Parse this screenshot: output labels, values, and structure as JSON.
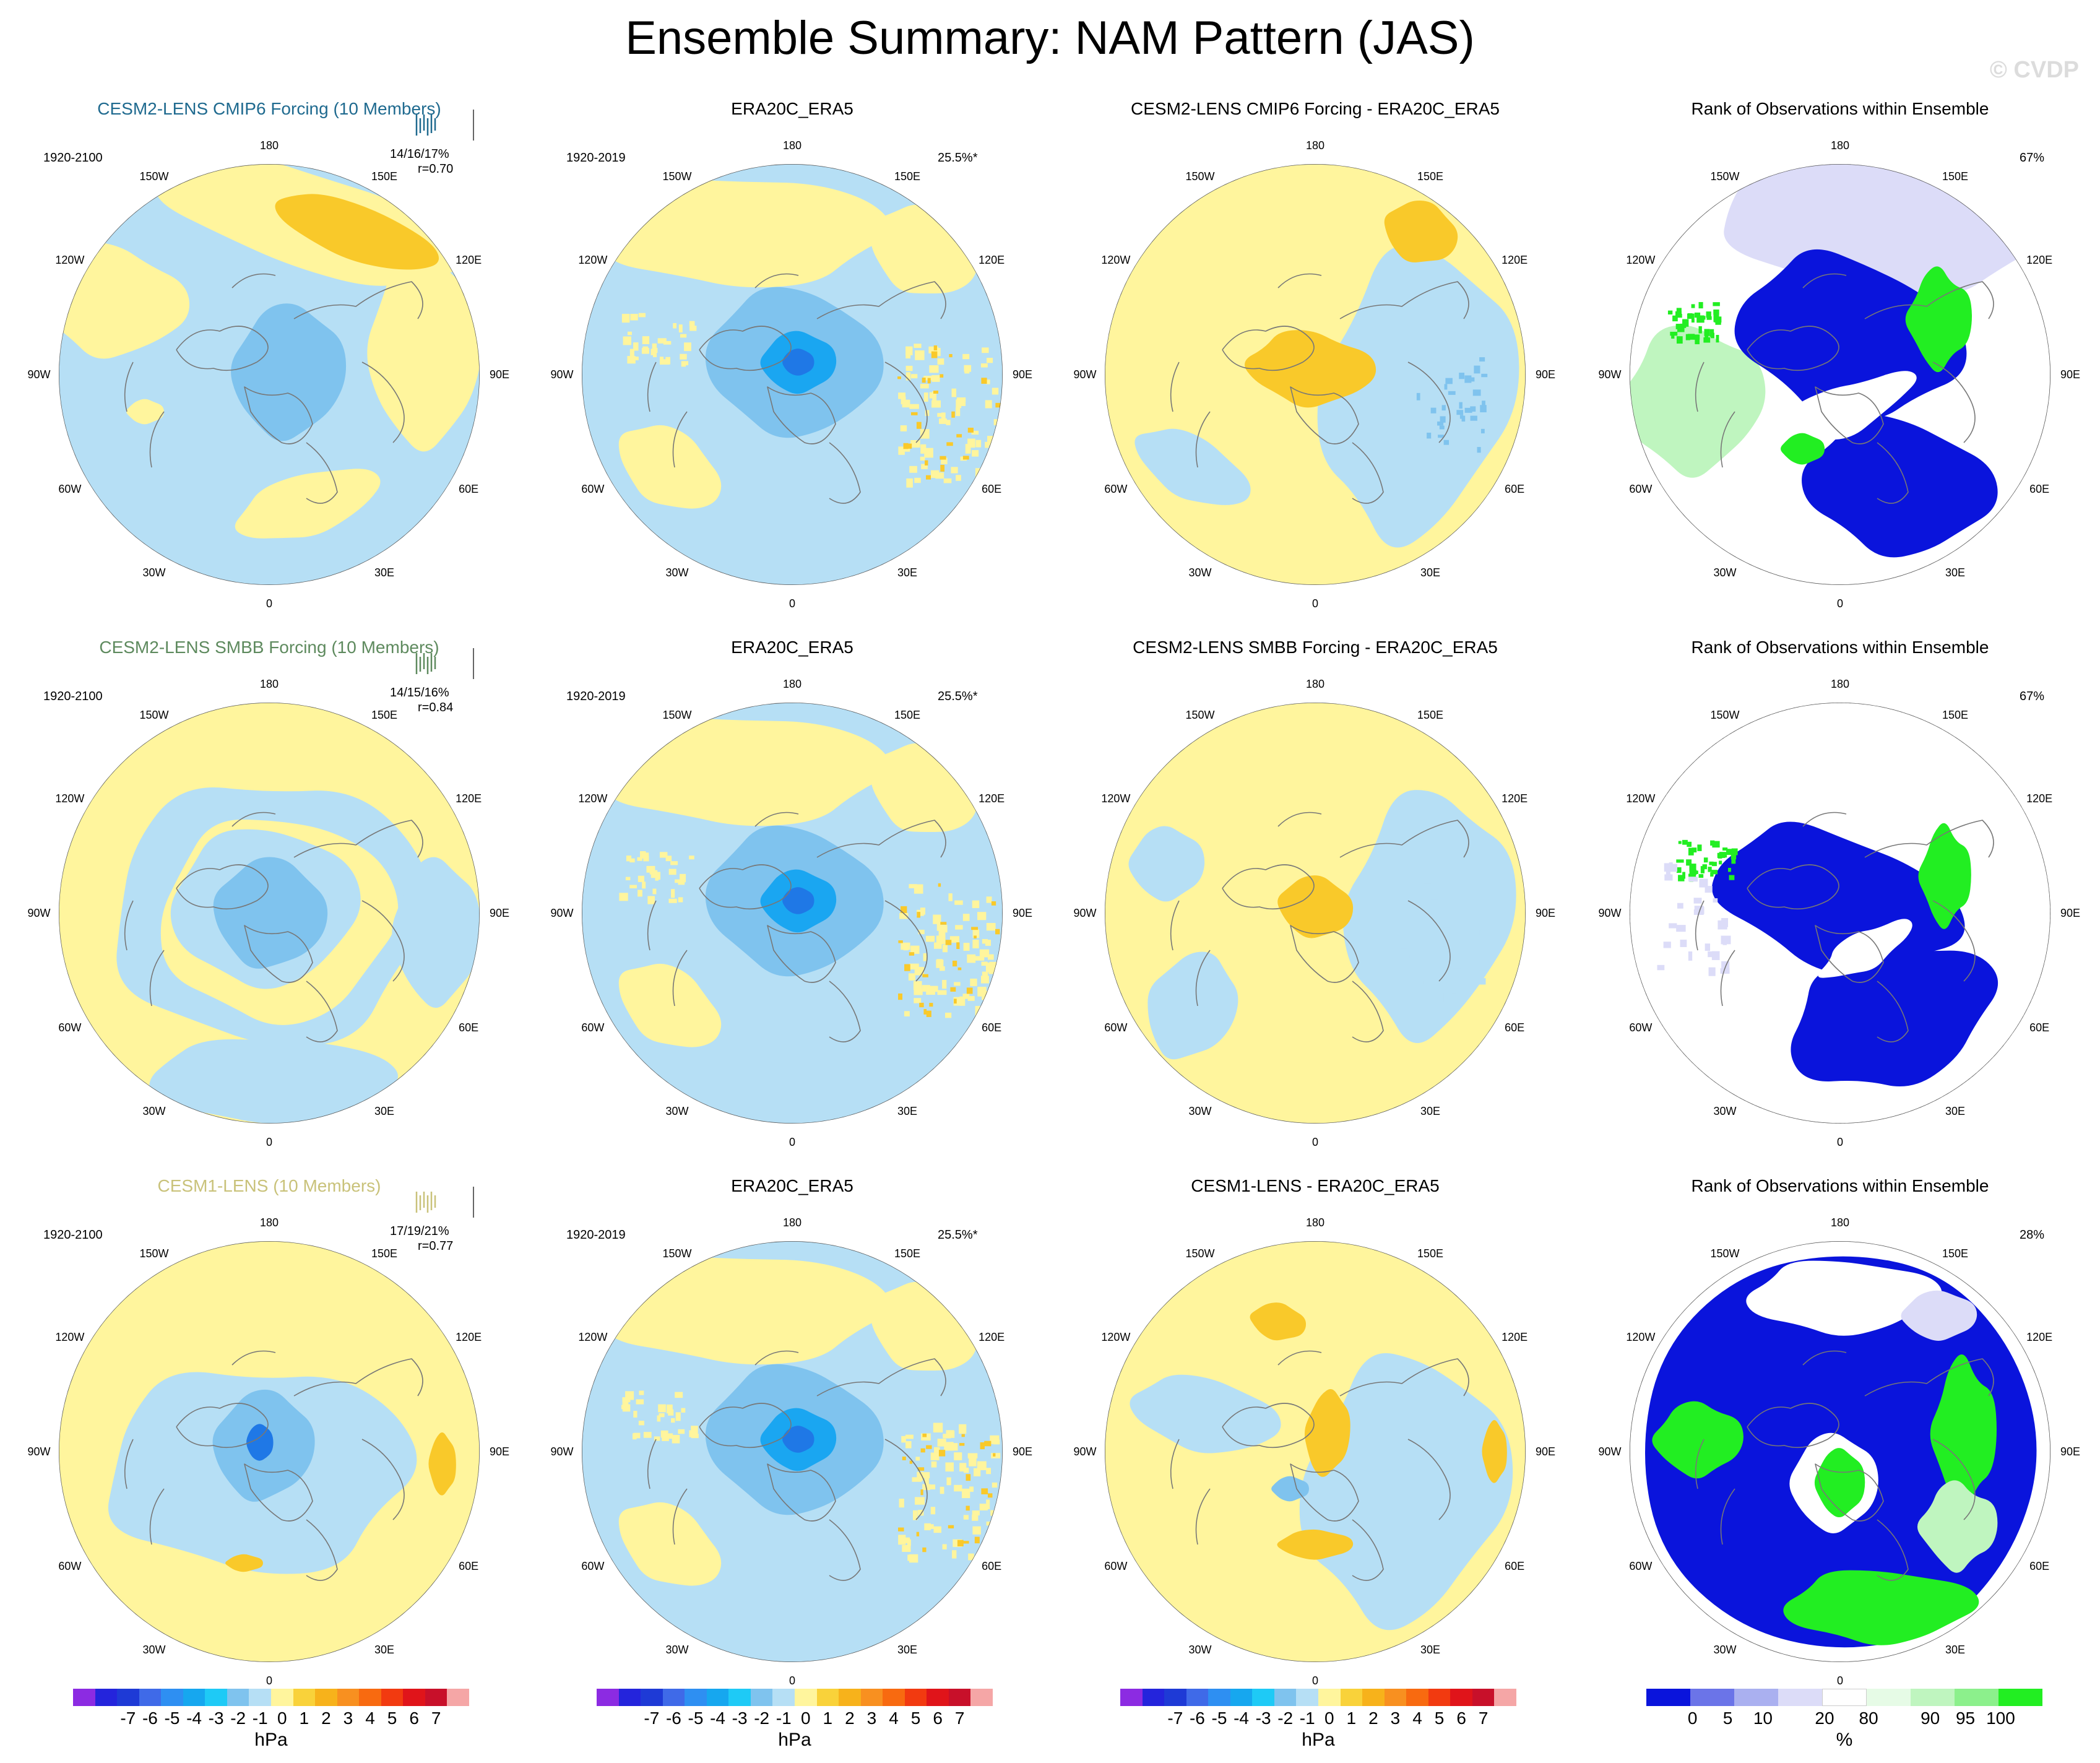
{
  "title": "Ensemble Summary: NAM Pattern (JAS)",
  "watermark": "© CVDP",
  "colors": {
    "ocean_yellow": "#fff59d",
    "light_blue": "#b6dff5",
    "mid_blue": "#7fc3ee",
    "cyan": "#1aa6f1",
    "deep_blue": "#1f78e6",
    "gold": "#f9c92a",
    "orange": "#f7a81b",
    "rank_blue": "#0a14dc",
    "rank_green": "#22ee22",
    "rank_lightgreen": "#bff5bf",
    "rank_lavender": "#dcdcf8",
    "coast": "#777777",
    "title_cmip6": "#1f6a8f",
    "title_smbb": "#5e8a5e",
    "title_cesm1": "#c9c27a"
  },
  "lon_labels": [
    "180",
    "150E",
    "120E",
    "90E",
    "60E",
    "30E",
    "0",
    "30W",
    "60W",
    "90W",
    "120W",
    "150W"
  ],
  "rows": [
    {
      "model_title": "CESM2-LENS CMIP6 Forcing (10 Members)",
      "model_period": "1920-2100",
      "model_stats": "14/16/17%",
      "model_r": "r=0.70",
      "obs_title": "ERA20C_ERA5",
      "obs_period": "1920-2019",
      "obs_pct": "25.5%*",
      "diff_title": "CESM2-LENS CMIP6 Forcing - ERA20C_ERA5",
      "rank_title": "Rank of Observations within Ensemble",
      "rank_pct": "67%"
    },
    {
      "model_title": "CESM2-LENS SMBB Forcing (10 Members)",
      "model_period": "1920-2100",
      "model_stats": "14/15/16%",
      "model_r": "r=0.84",
      "obs_title": "ERA20C_ERA5",
      "obs_period": "1920-2019",
      "obs_pct": "25.5%*",
      "diff_title": "CESM2-LENS SMBB Forcing - ERA20C_ERA5",
      "rank_title": "Rank of Observations within Ensemble",
      "rank_pct": "67%"
    },
    {
      "model_title": "CESM1-LENS (10 Members)",
      "model_period": "1920-2100",
      "model_stats": "17/19/21%",
      "model_r": "r=0.77",
      "obs_title": "ERA20C_ERA5",
      "obs_period": "1920-2019",
      "obs_pct": "25.5%*",
      "diff_title": "CESM1-LENS - ERA20C_ERA5",
      "rank_title": "Rank of Observations within Ensemble",
      "rank_pct": "28%"
    }
  ],
  "chart_data": [
    {
      "type": "heatmap",
      "title": "Ensemble Summary: NAM Pattern (JAS)",
      "projection": "north polar stereographic",
      "panels_per_row": [
        "model ensemble mean pattern",
        "observations (ERA20C_ERA5)",
        "model minus observations",
        "rank of observations within ensemble"
      ],
      "colorbar_hpa": {
        "unit": "hPa",
        "tick_labels": [
          "-7",
          "-6",
          "-5",
          "-4",
          "-3",
          "-2",
          "-1",
          "0",
          "1",
          "2",
          "3",
          "4",
          "5",
          "6",
          "7"
        ],
        "colors": [
          "#8c2be2",
          "#2424dc",
          "#1e3ad6",
          "#3f6ae8",
          "#2e8ff2",
          "#16a7ef",
          "#1ecaf6",
          "#7fc3ee",
          "#b6dff5",
          "#fff59d",
          "#f9d23a",
          "#f7b21b",
          "#f89020",
          "#f86a10",
          "#f23a10",
          "#e0141a",
          "#c8102a",
          "#f5a6a6"
        ]
      },
      "colorbar_rank": {
        "unit": "%",
        "tick_labels": [
          "0",
          "5",
          "10",
          "20",
          "80",
          "90",
          "95",
          "100"
        ],
        "colors": [
          "#0a14dc",
          "#6b74e8",
          "#aab0f0",
          "#dcdcf8",
          "#ffffff",
          "#e6fbe6",
          "#bff5bf",
          "#8cf08c",
          "#22ee22"
        ]
      }
    }
  ]
}
